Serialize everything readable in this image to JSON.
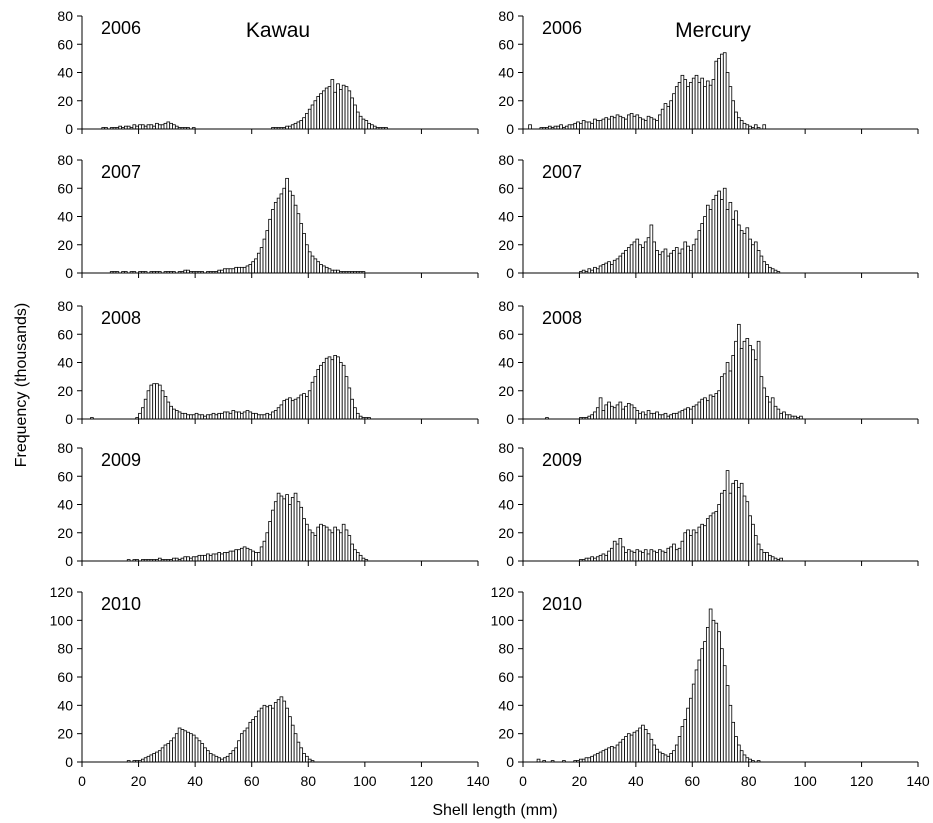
{
  "figure": {
    "ylabel": "Frequency (thousands)",
    "xlabel": "Shell length (mm)"
  },
  "chart_data": [
    {
      "type": "bar",
      "site": "Kawau",
      "year": "2006",
      "xlim": [
        0,
        140
      ],
      "ylim": [
        0,
        80
      ],
      "yticks": [
        0,
        20,
        40,
        60,
        80
      ],
      "xticks": [
        0,
        20,
        40,
        60,
        80,
        100,
        120,
        140
      ],
      "bin_width": 1,
      "x_start": 2,
      "values": [
        0,
        0,
        0,
        0,
        0,
        1,
        1,
        0,
        1,
        1,
        1,
        2,
        1,
        2,
        2,
        1,
        3,
        2,
        3,
        3,
        2,
        3,
        3,
        2,
        4,
        3,
        3,
        4,
        5,
        4,
        3,
        2,
        1,
        1,
        1,
        1,
        0,
        1,
        0,
        0,
        0,
        0,
        0,
        0,
        0,
        0,
        0,
        0,
        0,
        0,
        0,
        0,
        0,
        0,
        0,
        0,
        0,
        0,
        0,
        0,
        0,
        0,
        0,
        0,
        0,
        1,
        1,
        1,
        1,
        1,
        2,
        2,
        3,
        4,
        5,
        6,
        8,
        11,
        14,
        17,
        20,
        23,
        25,
        27,
        29,
        30,
        35,
        26,
        32,
        28,
        31,
        30,
        27,
        22,
        17,
        12,
        9,
        7,
        6,
        4,
        3,
        2,
        1,
        1,
        1,
        1,
        0,
        0,
        0,
        0
      ]
    },
    {
      "type": "bar",
      "site": "Mercury",
      "year": "2006",
      "xlim": [
        0,
        140
      ],
      "ylim": [
        0,
        80
      ],
      "yticks": [
        0,
        20,
        40,
        60,
        80
      ],
      "xticks": [
        0,
        20,
        40,
        60,
        80,
        100,
        120,
        140
      ],
      "bin_width": 1,
      "x_start": 2,
      "values": [
        3,
        0,
        0,
        0,
        1,
        1,
        1,
        2,
        1,
        2,
        2,
        3,
        1,
        2,
        3,
        3,
        4,
        5,
        4,
        6,
        5,
        5,
        4,
        7,
        6,
        6,
        7,
        8,
        7,
        9,
        8,
        10,
        9,
        8,
        7,
        10,
        11,
        9,
        10,
        8,
        7,
        6,
        9,
        8,
        7,
        6,
        10,
        14,
        18,
        16,
        20,
        25,
        30,
        33,
        38,
        35,
        30,
        33,
        36,
        38,
        33,
        36,
        30,
        34,
        31,
        35,
        48,
        50,
        53,
        54,
        40,
        30,
        20,
        12,
        8,
        6,
        4,
        3,
        2,
        1,
        3,
        1,
        0,
        3
      ]
    },
    {
      "type": "bar",
      "site": "Kawau",
      "year": "2007",
      "xlim": [
        0,
        140
      ],
      "ylim": [
        0,
        80
      ],
      "yticks": [
        0,
        20,
        40,
        60,
        80
      ],
      "xticks": [
        0,
        20,
        40,
        60,
        80,
        100,
        120,
        140
      ],
      "bin_width": 1,
      "x_start": 10,
      "values": [
        1,
        1,
        1,
        0,
        1,
        1,
        0,
        1,
        1,
        0,
        1,
        1,
        1,
        0,
        1,
        1,
        1,
        1,
        0,
        1,
        1,
        1,
        1,
        0,
        1,
        1,
        2,
        2,
        1,
        1,
        1,
        1,
        1,
        0,
        1,
        1,
        1,
        1,
        2,
        2,
        3,
        3,
        3,
        3,
        4,
        4,
        4,
        4,
        5,
        6,
        8,
        10,
        14,
        18,
        24,
        30,
        38,
        45,
        50,
        53,
        56,
        60,
        67,
        58,
        55,
        48,
        42,
        35,
        28,
        20,
        15,
        12,
        10,
        8,
        6,
        5,
        4,
        3,
        2,
        2,
        2,
        1,
        1,
        1,
        1,
        1,
        1,
        1,
        1,
        1
      ]
    },
    {
      "type": "bar",
      "site": "Mercury",
      "year": "2007",
      "xlim": [
        0,
        140
      ],
      "ylim": [
        0,
        80
      ],
      "yticks": [
        0,
        20,
        40,
        60,
        80
      ],
      "xticks": [
        0,
        20,
        40,
        60,
        80,
        100,
        120,
        140
      ],
      "bin_width": 1,
      "x_start": 20,
      "values": [
        1,
        2,
        1,
        3,
        2,
        4,
        3,
        5,
        6,
        7,
        8,
        6,
        9,
        10,
        12,
        14,
        16,
        18,
        20,
        22,
        24,
        20,
        18,
        22,
        25,
        34,
        22,
        16,
        13,
        15,
        17,
        12,
        14,
        16,
        18,
        14,
        17,
        22,
        19,
        16,
        20,
        24,
        30,
        35,
        40,
        48,
        45,
        52,
        55,
        58,
        52,
        60,
        45,
        50,
        38,
        44,
        34,
        30,
        28,
        32,
        24,
        20,
        22,
        16,
        12,
        8,
        6,
        4,
        3,
        2,
        1
      ]
    },
    {
      "type": "bar",
      "site": "Kawau",
      "year": "2008",
      "xlim": [
        0,
        140
      ],
      "ylim": [
        0,
        80
      ],
      "yticks": [
        0,
        20,
        40,
        60,
        80
      ],
      "xticks": [
        0,
        20,
        40,
        60,
        80,
        100,
        120,
        140
      ],
      "bin_width": 1,
      "x_start": 2,
      "values": [
        0,
        1,
        0,
        0,
        0,
        0,
        0,
        0,
        0,
        0,
        0,
        0,
        0,
        0,
        0,
        0,
        0,
        1,
        4,
        8,
        14,
        20,
        24,
        25,
        25,
        24,
        20,
        16,
        12,
        9,
        7,
        6,
        5,
        4,
        4,
        3,
        3,
        3,
        4,
        3,
        3,
        2,
        3,
        3,
        4,
        3,
        4,
        4,
        5,
        5,
        4,
        6,
        5,
        5,
        4,
        5,
        6,
        5,
        4,
        4,
        3,
        3,
        3,
        4,
        3,
        5,
        6,
        8,
        10,
        13,
        14,
        15,
        13,
        14,
        15,
        17,
        18,
        16,
        20,
        26,
        30,
        35,
        38,
        40,
        43,
        44,
        42,
        45,
        44,
        40,
        38,
        30,
        22,
        14,
        8,
        4,
        2,
        1,
        1,
        1
      ]
    },
    {
      "type": "bar",
      "site": "Mercury",
      "year": "2008",
      "xlim": [
        0,
        140
      ],
      "ylim": [
        0,
        80
      ],
      "yticks": [
        0,
        20,
        40,
        60,
        80
      ],
      "xticks": [
        0,
        20,
        40,
        60,
        80,
        100,
        120,
        140
      ],
      "bin_width": 1,
      "x_start": 8,
      "values": [
        1,
        0,
        0,
        0,
        0,
        0,
        0,
        0,
        0,
        0,
        0,
        0,
        1,
        1,
        1,
        2,
        3,
        5,
        8,
        15,
        6,
        10,
        12,
        9,
        8,
        10,
        12,
        7,
        9,
        11,
        10,
        8,
        6,
        4,
        5,
        3,
        6,
        4,
        4,
        5,
        3,
        3,
        4,
        2,
        3,
        4,
        4,
        5,
        6,
        7,
        8,
        7,
        9,
        10,
        12,
        14,
        15,
        13,
        17,
        16,
        18,
        20,
        30,
        32,
        40,
        34,
        45,
        55,
        67,
        50,
        55,
        57,
        52,
        49,
        42,
        55,
        30,
        22,
        16,
        12,
        15,
        9,
        7,
        4,
        5,
        3,
        3,
        2,
        2,
        1,
        2
      ]
    },
    {
      "type": "bar",
      "site": "Kawau",
      "year": "2009",
      "xlim": [
        0,
        140
      ],
      "ylim": [
        0,
        80
      ],
      "yticks": [
        0,
        20,
        40,
        60,
        80
      ],
      "xticks": [
        0,
        20,
        40,
        60,
        80,
        100,
        120,
        140
      ],
      "bin_width": 1,
      "x_start": 15,
      "values": [
        0,
        1,
        0,
        1,
        1,
        0,
        1,
        1,
        1,
        1,
        1,
        1,
        2,
        1,
        1,
        1,
        1,
        2,
        2,
        1,
        2,
        3,
        3,
        2,
        3,
        3,
        4,
        4,
        4,
        5,
        4,
        5,
        5,
        6,
        5,
        6,
        6,
        7,
        7,
        8,
        8,
        9,
        10,
        9,
        8,
        7,
        6,
        6,
        10,
        14,
        20,
        28,
        36,
        42,
        48,
        46,
        44,
        47,
        40,
        45,
        48,
        42,
        38,
        30,
        26,
        22,
        20,
        18,
        24,
        26,
        25,
        24,
        22,
        20,
        24,
        22,
        20,
        26,
        22,
        18,
        12,
        8,
        6,
        4,
        2,
        1
      ]
    },
    {
      "type": "bar",
      "site": "Mercury",
      "year": "2009",
      "xlim": [
        0,
        140
      ],
      "ylim": [
        0,
        80
      ],
      "yticks": [
        0,
        20,
        40,
        60,
        80
      ],
      "xticks": [
        0,
        20,
        40,
        60,
        80,
        100,
        120,
        140
      ],
      "bin_width": 1,
      "x_start": 20,
      "values": [
        1,
        1,
        2,
        2,
        3,
        2,
        3,
        4,
        5,
        4,
        7,
        9,
        14,
        12,
        16,
        10,
        6,
        8,
        7,
        6,
        8,
        7,
        6,
        8,
        5,
        8,
        7,
        6,
        8,
        7,
        6,
        9,
        10,
        12,
        8,
        9,
        14,
        20,
        22,
        18,
        22,
        20,
        24,
        26,
        25,
        30,
        32,
        34,
        35,
        40,
        48,
        50,
        64,
        48,
        55,
        57,
        52,
        55,
        46,
        42,
        32,
        26,
        18,
        12,
        8,
        6,
        6,
        4,
        3,
        2,
        1,
        2
      ]
    },
    {
      "type": "bar",
      "site": "Kawau",
      "year": "2010",
      "xlim": [
        0,
        140
      ],
      "ylim": [
        0,
        120
      ],
      "yticks": [
        0,
        20,
        40,
        60,
        80,
        100,
        120
      ],
      "xticks": [
        0,
        20,
        40,
        60,
        80,
        100,
        120,
        140
      ],
      "bin_width": 1,
      "x_start": 15,
      "values": [
        0,
        1,
        0,
        1,
        1,
        1,
        2,
        3,
        4,
        5,
        6,
        7,
        8,
        10,
        12,
        13,
        15,
        17,
        20,
        24,
        23,
        22,
        21,
        20,
        19,
        17,
        15,
        13,
        10,
        8,
        6,
        5,
        4,
        3,
        2,
        3,
        4,
        6,
        8,
        10,
        15,
        20,
        22,
        24,
        28,
        30,
        32,
        36,
        38,
        40,
        39,
        40,
        38,
        42,
        44,
        46,
        43,
        38,
        32,
        26,
        20,
        14,
        10,
        6,
        4,
        2,
        1
      ]
    },
    {
      "type": "bar",
      "site": "Mercury",
      "year": "2010",
      "xlim": [
        0,
        140
      ],
      "ylim": [
        0,
        120
      ],
      "yticks": [
        0,
        20,
        40,
        60,
        80,
        100,
        120
      ],
      "xticks": [
        0,
        20,
        40,
        60,
        80,
        100,
        120,
        140
      ],
      "bin_width": 1,
      "x_start": 5,
      "values": [
        2,
        0,
        1,
        0,
        0,
        1,
        0,
        0,
        0,
        1,
        0,
        0,
        0,
        1,
        1,
        2,
        2,
        3,
        3,
        4,
        5,
        6,
        7,
        8,
        9,
        10,
        11,
        10,
        12,
        14,
        16,
        18,
        20,
        19,
        21,
        22,
        24,
        26,
        23,
        20,
        16,
        12,
        9,
        7,
        6,
        5,
        4,
        6,
        8,
        12,
        18,
        25,
        30,
        38,
        45,
        55,
        65,
        72,
        80,
        85,
        95,
        108,
        100,
        98,
        92,
        80,
        68,
        54,
        40,
        28,
        18,
        12,
        8,
        5,
        3,
        2,
        1,
        0,
        1
      ]
    }
  ]
}
